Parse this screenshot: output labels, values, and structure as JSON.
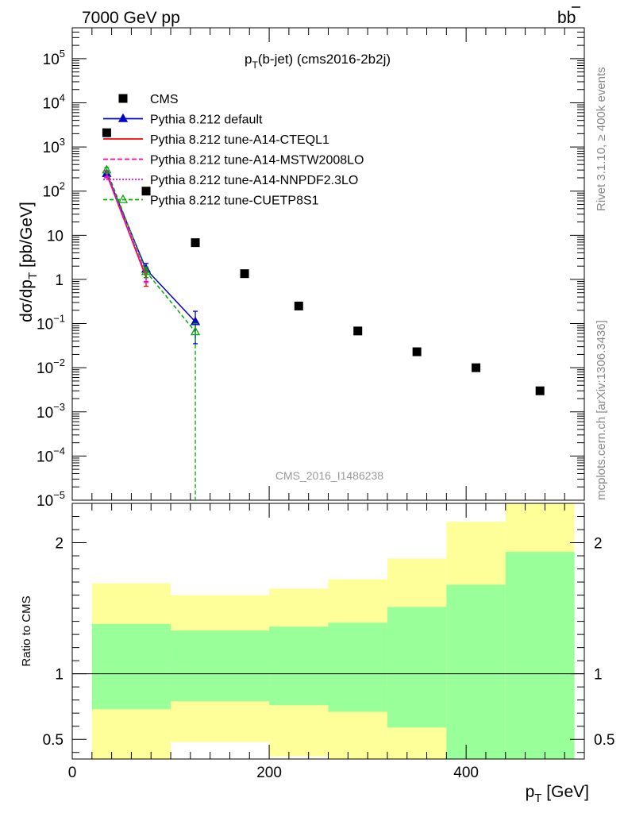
{
  "header": {
    "left": "7000 GeV pp",
    "right_base": "b",
    "right_bar": "b"
  },
  "side_text": {
    "rivet": "Rivet 3.1.10, ≥ 400k events",
    "mcplots": "mcplots.cern.ch [arXiv:1306.3436]"
  },
  "chart_data": {
    "type": "scatter",
    "title_main": "p",
    "title_sub": "T",
    "title_rest": "(b-jet) (cms2016-2b2j)",
    "watermark": "CMS_2016_I1486238",
    "main_panel": {
      "ylabel_main": "dσ/dp",
      "ylabel_sub": "T",
      "ylabel_unit": " [pb/GeV]",
      "yscale": "log",
      "ylim": [
        1e-05,
        500000.0
      ],
      "xlim": [
        0,
        520
      ],
      "y_ticks": [
        {
          "v": 100000,
          "base": "10",
          "exp": "5"
        },
        {
          "v": 10000,
          "base": "10",
          "exp": "4"
        },
        {
          "v": 1000,
          "base": "10",
          "exp": "3"
        },
        {
          "v": 100,
          "base": "10",
          "exp": "2"
        },
        {
          "v": 10,
          "base": "10",
          "exp": ""
        },
        {
          "v": 1,
          "base": "1",
          "exp": ""
        },
        {
          "v": 0.1,
          "base": "10",
          "exp": "−1"
        },
        {
          "v": 0.01,
          "base": "10",
          "exp": "−2"
        },
        {
          "v": 0.001,
          "base": "10",
          "exp": "−3"
        },
        {
          "v": 0.0001,
          "base": "10",
          "exp": "−4"
        },
        {
          "v": 1e-05,
          "base": "10",
          "exp": "−5"
        }
      ]
    },
    "ratio_panel": {
      "ylabel": "Ratio to CMS",
      "ylim": [
        0.35,
        2.3
      ],
      "y_ticks": [
        {
          "v": 0.5,
          "label": "0.5"
        },
        {
          "v": 1,
          "label": "1"
        },
        {
          "v": 2,
          "label": "2"
        }
      ],
      "bands": [
        {
          "x0": 20,
          "x1": 100,
          "y_lo": 0.35,
          "y_hi": 1.69,
          "g_lo": 0.73,
          "g_hi": 1.38
        },
        {
          "x0": 100,
          "x1": 200,
          "y_lo": 0.48,
          "y_hi": 1.6,
          "g_lo": 0.79,
          "g_hi": 1.33
        },
        {
          "x0": 200,
          "x1": 260,
          "y_lo": 0.37,
          "y_hi": 1.65,
          "g_lo": 0.76,
          "g_hi": 1.36
        },
        {
          "x0": 260,
          "x1": 320,
          "y_lo": 0.35,
          "y_hi": 1.72,
          "g_lo": 0.71,
          "g_hi": 1.39
        },
        {
          "x0": 320,
          "x1": 380,
          "y_lo": 0.35,
          "y_hi": 1.88,
          "g_lo": 0.59,
          "g_hi": 1.51
        },
        {
          "x0": 380,
          "x1": 440,
          "y_lo": 0.35,
          "y_hi": 2.16,
          "g_lo": 0.35,
          "g_hi": 1.68
        },
        {
          "x0": 440,
          "x1": 510,
          "y_lo": 0.35,
          "y_hi": 2.3,
          "g_lo": 0.35,
          "g_hi": 1.93
        }
      ],
      "band_colors": {
        "outer": "#ffff99",
        "inner": "#99ff99"
      }
    },
    "xlabel_main": "p",
    "xlabel_sub": "T",
    "xlabel_unit": " [GeV]",
    "x_ticks": [
      {
        "v": 0,
        "label": "0"
      },
      {
        "v": 200,
        "label": "200"
      },
      {
        "v": 400,
        "label": "400"
      }
    ],
    "series": [
      {
        "name": "CMS",
        "kind": "data",
        "color": "#000000",
        "x": [
          35,
          75,
          125,
          175,
          230,
          290,
          350,
          410,
          475
        ],
        "y": [
          2100,
          100,
          6.8,
          1.35,
          0.25,
          0.068,
          0.023,
          0.01,
          0.003
        ]
      },
      {
        "name": "Pythia 8.212 default",
        "kind": "mc",
        "color": "#0000cc",
        "dash": "",
        "marker": "triangle",
        "x": [
          35,
          75,
          125
        ],
        "y": [
          250,
          1.7,
          0.11
        ],
        "err_lo": [
          210,
          1.1,
          0.035
        ],
        "err_hi": [
          290,
          2.3,
          0.19
        ]
      },
      {
        "name": "Pythia 8.212 tune-A14-CTEQL1",
        "kind": "mc",
        "color": "#ff0000",
        "dash": "",
        "marker": "none",
        "x": [
          35,
          75
        ],
        "y": [
          240,
          1.1
        ],
        "err_lo": [
          200,
          0.7
        ],
        "err_hi": [
          280,
          1.5
        ]
      },
      {
        "name": "Pythia 8.212 tune-A14-MSTW2008LO",
        "kind": "mc",
        "color": "#ff00aa",
        "dash": "6,3",
        "marker": "none",
        "x": [
          35,
          75
        ],
        "y": [
          245,
          1.2
        ],
        "err_lo": [
          205,
          0.85
        ],
        "err_hi": [
          285,
          1.55
        ]
      },
      {
        "name": "Pythia 8.212 tune-A14-NNPDF2.3LO",
        "kind": "mc",
        "color": "#ff00ff",
        "dash": "2,2",
        "marker": "none",
        "x": [
          35,
          75
        ],
        "y": [
          250,
          1.3
        ],
        "err_lo": [
          210,
          0.9
        ],
        "err_hi": [
          290,
          1.7
        ]
      },
      {
        "name": "Pythia 8.212 tune-CUETP8S1",
        "kind": "mc",
        "color": "#00aa00",
        "dash": "5,3",
        "marker": "triangle-open",
        "x": [
          35,
          75,
          125
        ],
        "y": [
          300,
          1.5,
          0.065
        ],
        "err_lo": [
          260,
          1.1,
          1e-06
        ],
        "err_hi": [
          340,
          1.9,
          0.1
        ]
      }
    ],
    "ratio_reference": 1
  }
}
